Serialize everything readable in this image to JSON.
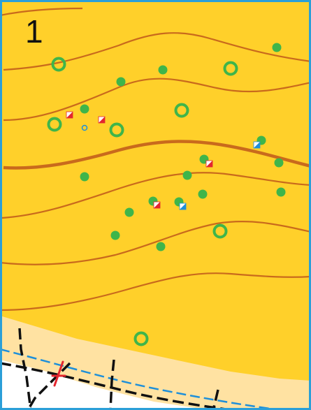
{
  "map": {
    "number_label": "1",
    "colors": {
      "open_land": "#ffd02a",
      "rough_open": "#ffe2a2",
      "white_area": "#ffffff",
      "contour": "#c96a1c",
      "vegetation": "#3fb54a",
      "frame": "#2b9fd8",
      "path": "#111111",
      "stream": "#1e8fd9",
      "course_mark": "#e3262e"
    },
    "symbols": {
      "bushes": 17,
      "rings": 7,
      "red_markers": 4,
      "blue_markers": 2,
      "small_water_ring": 1
    }
  }
}
